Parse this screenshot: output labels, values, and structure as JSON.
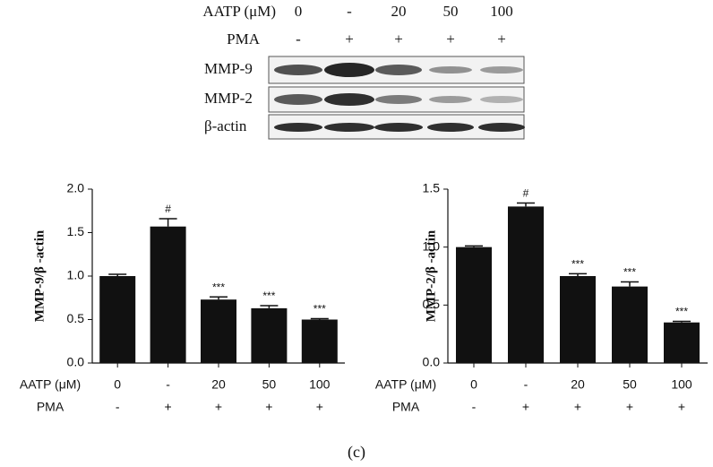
{
  "blot": {
    "rows": [
      {
        "label": "AATP (μM)",
        "lanes": [
          "0",
          "-",
          "20",
          "50",
          "100"
        ]
      },
      {
        "label": "PMA",
        "lanes": [
          "-",
          "+",
          "+",
          "+",
          "+"
        ]
      }
    ],
    "bands": [
      "MMP-9",
      "MMP-2",
      "β-actin"
    ]
  },
  "chart_data": [
    {
      "type": "bar",
      "y_label": "MMP-9/β -actin",
      "color": "#111111",
      "categories": [
        "0",
        "-",
        "20",
        "50",
        "100"
      ],
      "category_row_label": "AATP (μM)",
      "pma": [
        "-",
        "+",
        "+",
        "+",
        "+"
      ],
      "pma_row_label": "PMA",
      "values": [
        1.0,
        1.57,
        0.73,
        0.63,
        0.5
      ],
      "errors": [
        0.02,
        0.09,
        0.03,
        0.03,
        0.01
      ],
      "annotations": [
        null,
        "#",
        "***",
        "***",
        "***"
      ],
      "ylim": [
        0,
        2
      ],
      "yticks": [
        {
          "value": 0,
          "label": "0.0"
        },
        0.5,
        {
          "value": 1,
          "label": "1.0"
        },
        1.5,
        {
          "value": 2,
          "label": "2.0"
        }
      ]
    },
    {
      "type": "bar",
      "y_label": "MMP-2/β -actin",
      "color": "#111111",
      "categories": [
        "0",
        "-",
        "20",
        "50",
        "100"
      ],
      "category_row_label": "AATP (μM)",
      "pma": [
        "-",
        "+",
        "+",
        "+",
        "+"
      ],
      "pma_row_label": "PMA",
      "values": [
        1.0,
        1.35,
        0.75,
        0.66,
        0.35
      ],
      "errors": [
        0.01,
        0.03,
        0.02,
        0.04,
        0.01
      ],
      "annotations": [
        null,
        "#",
        "***",
        "***",
        "***"
      ],
      "ylim": [
        0,
        1.5
      ],
      "yticks": [
        {
          "value": 0,
          "label": "0.0"
        },
        0.5,
        {
          "value": 1,
          "label": "1.0"
        },
        1.5
      ]
    }
  ],
  "caption": "(c)"
}
